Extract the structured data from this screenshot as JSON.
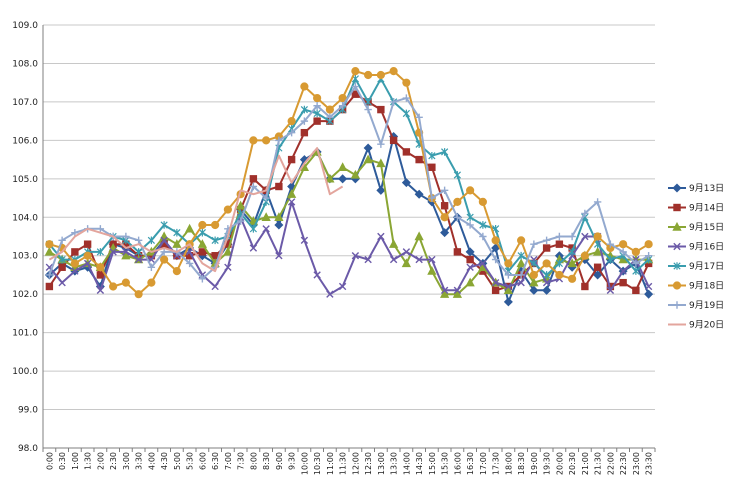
{
  "chart_data": {
    "type": "line",
    "title": "",
    "xlabel": "",
    "ylabel": "",
    "ylim": [
      98.0,
      109.0
    ],
    "yticks": [
      "98.0",
      "99.0",
      "100.0",
      "101.0",
      "102.0",
      "103.0",
      "104.0",
      "105.0",
      "106.0",
      "107.0",
      "108.0",
      "109.0"
    ],
    "grid": true,
    "legend_position": "right",
    "categories": [
      "0:00",
      "0:30",
      "1:00",
      "1:30",
      "2:00",
      "2:30",
      "3:00",
      "3:30",
      "4:00",
      "4:30",
      "5:00",
      "5:30",
      "6:00",
      "6:30",
      "7:00",
      "7:30",
      "8:00",
      "8:30",
      "9:00",
      "9:30",
      "10:00",
      "10:30",
      "11:00",
      "11:30",
      "12:00",
      "12:30",
      "13:00",
      "13:30",
      "14:00",
      "14:30",
      "15:00",
      "15:30",
      "16:00",
      "16:30",
      "17:00",
      "17:30",
      "18:00",
      "18:30",
      "19:00",
      "19:30",
      "20:00",
      "20:30",
      "21:00",
      "21:30",
      "22:00",
      "22:30",
      "23:00",
      "23:30"
    ],
    "series": [
      {
        "name": "9月13日",
        "color": "#2e5b9a",
        "marker": "diamond",
        "values": [
          102.5,
          102.8,
          102.6,
          102.7,
          102.2,
          103.3,
          103.2,
          103.0,
          103.0,
          103.4,
          103.0,
          103.2,
          103.0,
          102.8,
          103.3,
          104.2,
          103.8,
          104.7,
          103.8,
          104.8,
          105.5,
          105.7,
          105.0,
          105.0,
          105.0,
          105.8,
          104.7,
          106.1,
          104.9,
          104.6,
          104.4,
          103.6,
          104.0,
          103.1,
          102.8,
          103.2,
          101.8,
          102.6,
          102.1,
          102.1,
          103.0,
          102.7,
          102.9,
          102.5,
          102.9,
          102.6,
          102.8,
          102.0
        ]
      },
      {
        "name": "9月14日",
        "color": "#a0302b",
        "marker": "square",
        "values": [
          102.2,
          102.7,
          103.1,
          103.3,
          102.5,
          103.3,
          103.3,
          103.0,
          103.0,
          103.3,
          103.0,
          103.0,
          103.1,
          103.0,
          103.3,
          104.2,
          105.0,
          104.7,
          104.8,
          105.5,
          106.2,
          106.5,
          106.5,
          106.8,
          107.2,
          107.0,
          106.8,
          106.0,
          105.7,
          105.5,
          105.3,
          104.3,
          103.1,
          102.9,
          102.6,
          102.1,
          102.2,
          102.5,
          102.8,
          103.2,
          103.3,
          103.2,
          102.2,
          102.7,
          102.2,
          102.3,
          102.1,
          102.8
        ]
      },
      {
        "name": "9月15日",
        "color": "#8aa634",
        "marker": "triangle",
        "values": [
          103.1,
          102.9,
          102.7,
          102.8,
          102.7,
          103.2,
          103.0,
          102.9,
          103.1,
          103.5,
          103.3,
          103.7,
          103.3,
          102.8,
          103.1,
          104.3,
          103.9,
          104.0,
          104.0,
          104.6,
          105.3,
          105.7,
          105.0,
          105.3,
          105.1,
          105.5,
          105.4,
          103.3,
          102.8,
          103.5,
          102.6,
          102.0,
          102.0,
          102.3,
          102.7,
          102.3,
          102.1,
          102.8,
          102.3,
          102.4,
          102.9,
          102.8,
          103.0,
          103.1,
          103.0,
          102.9,
          102.9,
          102.9
        ]
      },
      {
        "name": "9月16日",
        "color": "#6b5aa8",
        "marker": "x",
        "values": [
          102.7,
          102.3,
          102.6,
          102.8,
          102.1,
          103.1,
          103.1,
          102.9,
          102.9,
          103.4,
          103.0,
          103.1,
          102.5,
          102.2,
          102.7,
          104.0,
          103.2,
          103.7,
          103.0,
          104.4,
          103.4,
          102.5,
          102.0,
          102.2,
          103.0,
          102.9,
          103.5,
          102.9,
          103.1,
          102.9,
          102.9,
          102.1,
          102.1,
          102.7,
          102.8,
          102.3,
          102.2,
          102.3,
          102.9,
          102.3,
          102.4,
          103.0,
          103.5,
          103.5,
          102.1,
          102.6,
          102.9,
          102.2
        ]
      },
      {
        "name": "9月17日",
        "color": "#3a9dae",
        "marker": "asterisk",
        "values": [
          103.3,
          102.9,
          102.9,
          103.1,
          103.1,
          103.5,
          103.4,
          103.1,
          103.4,
          103.8,
          103.6,
          103.3,
          103.6,
          103.4,
          103.5,
          104.1,
          103.7,
          104.4,
          105.8,
          106.3,
          106.8,
          106.7,
          106.5,
          106.8,
          107.6,
          107.0,
          107.6,
          107.0,
          106.7,
          105.9,
          105.6,
          105.7,
          105.1,
          104.0,
          103.8,
          103.7,
          102.6,
          103.0,
          102.8,
          102.5,
          102.8,
          103.1,
          104.0,
          103.3,
          102.9,
          103.0,
          102.6,
          102.9
        ]
      },
      {
        "name": "9月18日",
        "color": "#d89a32",
        "marker": "circle",
        "values": [
          103.3,
          103.2,
          102.8,
          103.0,
          102.7,
          102.2,
          102.3,
          102.0,
          102.3,
          102.9,
          102.6,
          103.3,
          103.8,
          103.8,
          104.2,
          104.6,
          106.0,
          106.0,
          106.1,
          106.5,
          107.4,
          107.1,
          106.8,
          107.1,
          107.8,
          107.7,
          107.7,
          107.8,
          107.5,
          106.2,
          104.5,
          104.0,
          104.4,
          104.7,
          104.4,
          103.4,
          102.8,
          103.4,
          102.5,
          102.8,
          102.5,
          102.4,
          103.0,
          103.5,
          103.2,
          103.3,
          103.1,
          103.3
        ]
      },
      {
        "name": "9月19日",
        "color": "#93a9cf",
        "marker": "plus",
        "values": [
          102.5,
          103.4,
          103.6,
          103.7,
          103.7,
          103.5,
          103.5,
          103.4,
          102.7,
          103.1,
          103.1,
          102.8,
          102.4,
          102.7,
          103.7,
          103.9,
          104.8,
          104.5,
          106.0,
          106.2,
          106.5,
          106.9,
          106.6,
          106.9,
          107.4,
          106.8,
          105.9,
          107.0,
          107.1,
          106.6,
          104.5,
          104.7,
          104.0,
          103.8,
          103.5,
          102.9,
          102.5,
          102.5,
          103.3,
          103.4,
          103.5,
          103.5,
          104.1,
          104.4,
          103.3,
          103.1,
          102.8,
          103.0
        ]
      },
      {
        "name": "9月20日",
        "color": "#e3a59d",
        "marker": "none",
        "values": [
          102.9,
          103.1,
          103.5,
          103.7,
          103.6,
          103.5,
          103.2,
          103.3,
          103.1,
          103.2,
          103.1,
          103.3,
          102.8,
          102.6,
          103.5,
          104.7,
          104.6,
          104.7,
          105.6,
          104.9,
          105.4,
          105.8,
          104.6,
          104.8,
          null,
          null,
          null,
          null,
          null,
          null,
          null,
          null,
          null,
          null,
          null,
          null,
          null,
          null,
          null,
          null,
          null,
          null,
          null,
          null,
          null,
          null,
          null,
          null
        ]
      }
    ]
  }
}
